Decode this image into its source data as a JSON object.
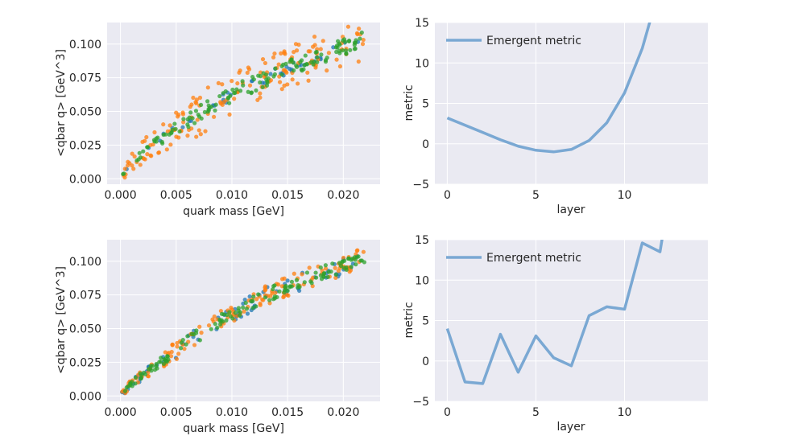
{
  "chart_data": [
    {
      "type": "scatter",
      "title": "",
      "xlabel": "quark mass [GeV]",
      "ylabel": "<qbar q> [GeV^3]",
      "xlim": [
        -0.0012,
        0.0233
      ],
      "ylim": [
        -0.004,
        0.116
      ],
      "xticks": [
        0.0,
        0.005,
        0.01,
        0.015,
        0.02
      ],
      "xtick_labels": [
        "0.000",
        "0.005",
        "0.010",
        "0.015",
        "0.020"
      ],
      "yticks": [
        0.0,
        0.025,
        0.05,
        0.075,
        0.1
      ],
      "ytick_labels": [
        "0.000",
        "0.025",
        "0.050",
        "0.075",
        "0.100"
      ],
      "series": [
        {
          "name": "blue",
          "color": "#1f77b4",
          "spread": 0.004,
          "n": 40
        },
        {
          "name": "orange",
          "color": "#ff7f0e",
          "spread": 0.016,
          "n": 160
        },
        {
          "name": "green",
          "color": "#2ca02c",
          "spread": 0.006,
          "n": 140
        }
      ],
      "curve": {
        "x": [
          0.0,
          0.002,
          0.005,
          0.01,
          0.015,
          0.022
        ],
        "y": [
          0.002,
          0.02,
          0.038,
          0.063,
          0.082,
          0.104
        ]
      }
    },
    {
      "type": "line",
      "title": "",
      "xlabel": "layer",
      "ylabel": "metric",
      "xlim": [
        -0.7,
        14.7
      ],
      "ylim": [
        -5,
        15
      ],
      "xticks": [
        0,
        5,
        10
      ],
      "xtick_labels": [
        "0",
        "5",
        "10"
      ],
      "yticks": [
        -5,
        0,
        5,
        10,
        15
      ],
      "ytick_labels": [
        "−5",
        "0",
        "5",
        "10",
        "15"
      ],
      "legend": {
        "label": "Emergent metric",
        "loc": "upper-left"
      },
      "series": [
        {
          "name": "Emergent metric",
          "color": "#7aa8d3",
          "x": [
            0,
            1,
            2,
            3,
            4,
            5,
            6,
            7,
            8,
            9,
            10,
            11,
            12
          ],
          "y": [
            3.2,
            2.3,
            1.4,
            0.5,
            -0.3,
            -0.8,
            -1.0,
            -0.7,
            0.4,
            2.6,
            6.3,
            11.8,
            19.5
          ]
        }
      ]
    },
    {
      "type": "scatter",
      "title": "",
      "xlabel": "quark mass [GeV]",
      "ylabel": "<qbar q> [GeV^3]",
      "xlim": [
        -0.0012,
        0.0233
      ],
      "ylim": [
        -0.004,
        0.116
      ],
      "xticks": [
        0.0,
        0.005,
        0.01,
        0.015,
        0.02
      ],
      "xtick_labels": [
        "0.000",
        "0.005",
        "0.010",
        "0.015",
        "0.020"
      ],
      "yticks": [
        0.0,
        0.025,
        0.05,
        0.075,
        0.1
      ],
      "ytick_labels": [
        "0.000",
        "0.025",
        "0.050",
        "0.075",
        "0.100"
      ],
      "series": [
        {
          "name": "blue",
          "color": "#1f77b4",
          "spread": 0.007,
          "n": 70
        },
        {
          "name": "orange",
          "color": "#ff7f0e",
          "spread": 0.008,
          "n": 140
        },
        {
          "name": "green",
          "color": "#2ca02c",
          "spread": 0.005,
          "n": 140
        }
      ],
      "curve": {
        "x": [
          0.0,
          0.002,
          0.005,
          0.01,
          0.015,
          0.022
        ],
        "y": [
          0.002,
          0.016,
          0.034,
          0.062,
          0.082,
          0.103
        ]
      }
    },
    {
      "type": "line",
      "title": "",
      "xlabel": "layer",
      "ylabel": "metric",
      "xlim": [
        -0.7,
        14.7
      ],
      "ylim": [
        -5,
        15
      ],
      "xticks": [
        0,
        5,
        10
      ],
      "xtick_labels": [
        "0",
        "5",
        "10"
      ],
      "yticks": [
        -5,
        0,
        5,
        10,
        15
      ],
      "ytick_labels": [
        "−5",
        "0",
        "5",
        "10",
        "15"
      ],
      "legend": {
        "label": "Emergent metric",
        "loc": "upper-left"
      },
      "series": [
        {
          "name": "Emergent metric",
          "color": "#7aa8d3",
          "x": [
            0,
            1,
            2,
            3,
            4,
            5,
            6,
            7,
            8,
            9,
            10,
            11,
            12,
            12.3
          ],
          "y": [
            4.0,
            -2.6,
            -2.8,
            3.3,
            -1.4,
            3.1,
            0.4,
            -0.6,
            5.6,
            6.7,
            6.4,
            14.6,
            13.5,
            17.5
          ]
        }
      ]
    }
  ]
}
